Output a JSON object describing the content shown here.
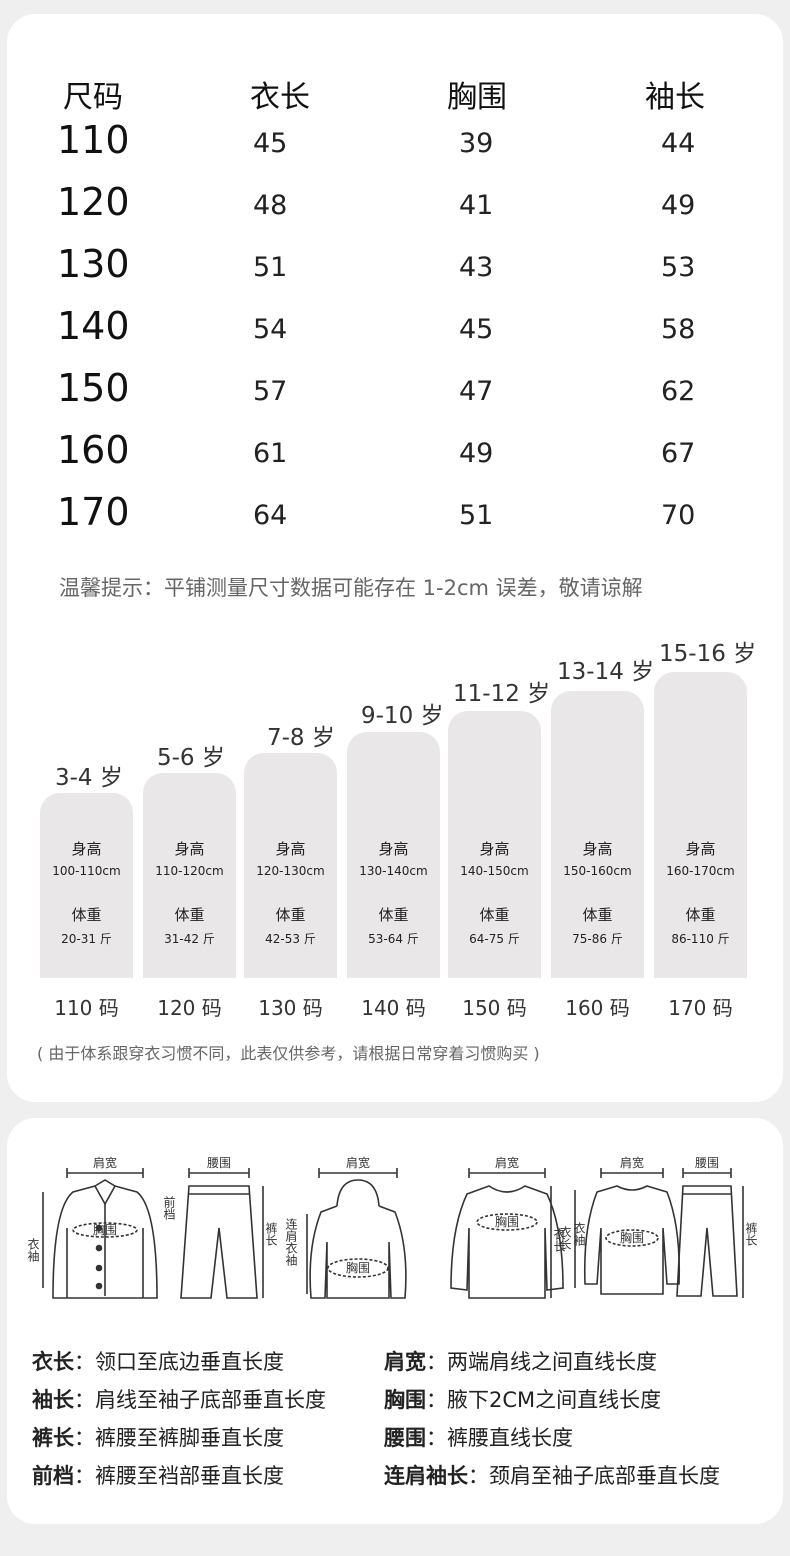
{
  "size_table": {
    "headers": [
      "尺码",
      "衣长",
      "胸围",
      "袖长"
    ],
    "rows": [
      {
        "size": "110",
        "length": "45",
        "chest": "39",
        "sleeve": "44"
      },
      {
        "size": "120",
        "length": "48",
        "chest": "41",
        "sleeve": "49"
      },
      {
        "size": "130",
        "length": "51",
        "chest": "43",
        "sleeve": "53"
      },
      {
        "size": "140",
        "length": "54",
        "chest": "45",
        "sleeve": "58"
      },
      {
        "size": "150",
        "length": "57",
        "chest": "47",
        "sleeve": "62"
      },
      {
        "size": "160",
        "length": "61",
        "chest": "49",
        "sleeve": "67"
      },
      {
        "size": "170",
        "length": "64",
        "chest": "51",
        "sleeve": "70"
      }
    ],
    "tip": "温馨提示：平铺测量尺寸数据可能存在 1-2cm 误差，敬请谅解"
  },
  "age_chart": {
    "height_label": "身高",
    "weight_label": "体重",
    "groups": [
      {
        "age": "3-4 岁",
        "height": "100-110cm",
        "weight": "20-31 斤",
        "code": "110 码"
      },
      {
        "age": "5-6 岁",
        "height": "110-120cm",
        "weight": "31-42 斤",
        "code": "120 码"
      },
      {
        "age": "7-8 岁",
        "height": "120-130cm",
        "weight": "42-53 斤",
        "code": "130 码"
      },
      {
        "age": "9-10 岁",
        "height": "130-140cm",
        "weight": "53-64 斤",
        "code": "140 码"
      },
      {
        "age": "11-12 岁",
        "height": "140-150cm",
        "weight": "64-75 斤",
        "code": "150 码"
      },
      {
        "age": "13-14 岁",
        "height": "150-160cm",
        "weight": "75-86 斤",
        "code": "160 码"
      },
      {
        "age": "15-16 岁",
        "height": "160-170cm",
        "weight": "86-110 斤",
        "code": "170 码"
      }
    ],
    "note": "( 由于体系跟穿衣习惯不同，此表仅供参考，请根据日常穿着习惯购买 )"
  },
  "illustration_labels": {
    "shoulder": "肩宽",
    "waist": "腰围",
    "chest": "胸围",
    "sleeve": "衣袖",
    "rise": "前档",
    "pants_length": "裤长",
    "raglan_sleeve": "连肩衣袖",
    "length": "衣长"
  },
  "definitions": [
    {
      "key": "衣长",
      "value": "领口至底边垂直长度"
    },
    {
      "key": "肩宽",
      "value": "两端肩线之间直线长度"
    },
    {
      "key": "袖长",
      "value": "肩线至袖子底部垂直长度"
    },
    {
      "key": "胸围",
      "value": "腋下2CM之间直线长度"
    },
    {
      "key": "裤长",
      "value": "裤腰至裤脚垂直长度"
    },
    {
      "key": "腰围",
      "value": "裤腰直线长度"
    },
    {
      "key": "前档",
      "value": "裤腰至裆部垂直长度"
    },
    {
      "key": "连肩袖长",
      "value": "颈肩至袖子底部垂直长度"
    }
  ]
}
